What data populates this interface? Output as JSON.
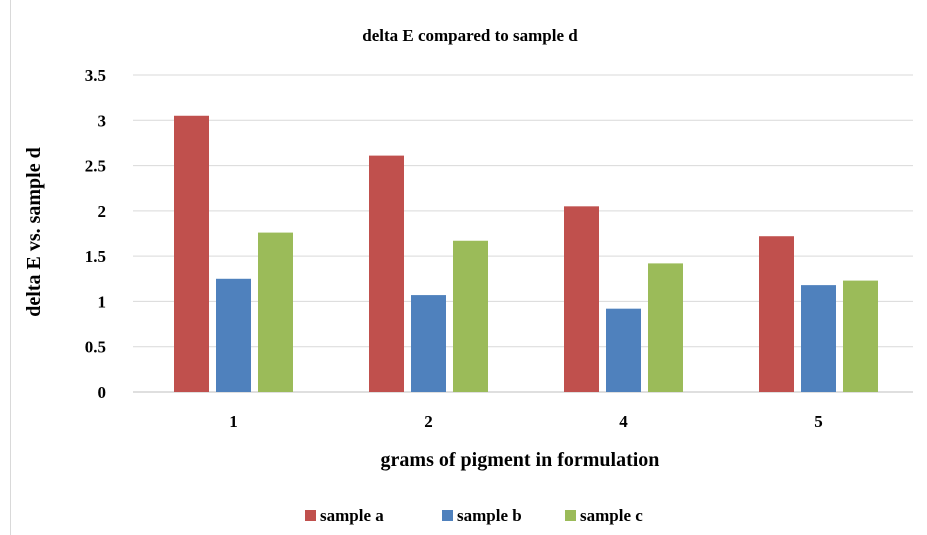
{
  "chart_data": {
    "type": "bar",
    "title": "delta E compared to sample d",
    "xlabel": "grams of pigment in formulation",
    "ylabel": "delta E vs. sample d",
    "categories": [
      "1",
      "2",
      "4",
      "5"
    ],
    "ylim": [
      0,
      3.5
    ],
    "yticks": [
      "0",
      "0.5",
      "1",
      "1.5",
      "2",
      "2.5",
      "3",
      "3.5"
    ],
    "grid": true,
    "legend_position": "bottom",
    "series": [
      {
        "name": "sample a",
        "color": "#c0504d",
        "values": [
          3.05,
          2.61,
          2.05,
          1.72
        ]
      },
      {
        "name": "sample b",
        "color": "#4f81bd",
        "values": [
          1.25,
          1.07,
          0.92,
          1.18
        ]
      },
      {
        "name": "sample c",
        "color": "#9bbb59",
        "values": [
          1.76,
          1.67,
          1.42,
          1.23
        ]
      }
    ]
  }
}
